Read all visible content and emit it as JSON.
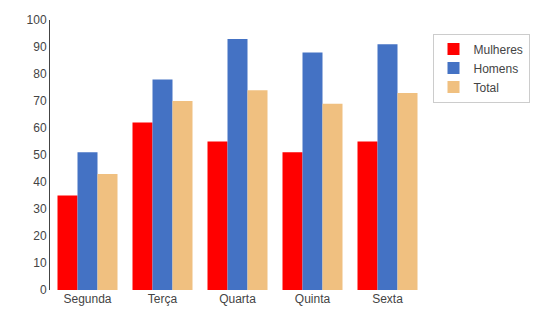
{
  "chart_data": {
    "type": "bar",
    "categories": [
      "Segunda",
      "Terça",
      "Quarta",
      "Quinta",
      "Sexta"
    ],
    "series": [
      {
        "name": "Mulheres",
        "color": "#FF0000",
        "values": [
          35,
          62,
          55,
          51,
          55
        ]
      },
      {
        "name": "Homens",
        "color": "#4472C4",
        "values": [
          51,
          78,
          93,
          88,
          91
        ]
      },
      {
        "name": "Total",
        "color": "#F0C080",
        "values": [
          43,
          70,
          74,
          69,
          73
        ]
      }
    ],
    "ylim": [
      0,
      100
    ],
    "yticks": [
      0,
      10,
      20,
      30,
      40,
      50,
      60,
      70,
      80,
      90,
      100
    ],
    "grid": false,
    "legend": "right"
  }
}
